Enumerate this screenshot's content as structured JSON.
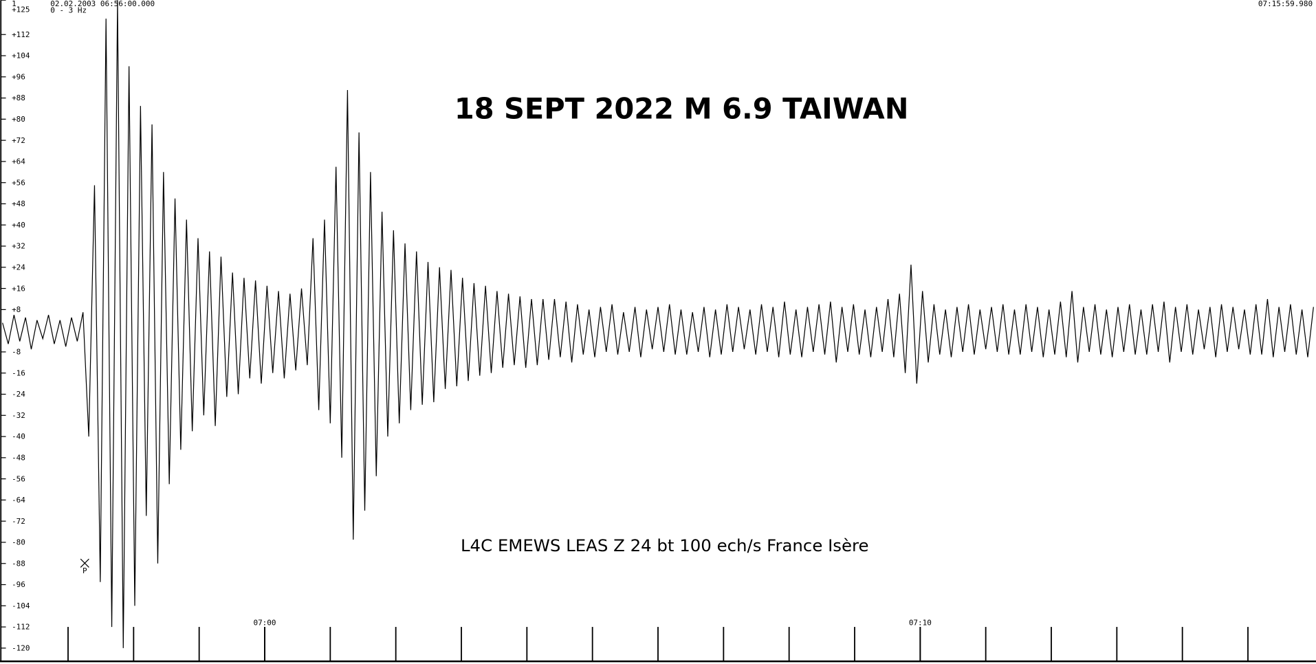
{
  "chart_data": {
    "type": "line",
    "title": "18 SEPT 2022 M 6.9 TAIWAN",
    "subtitle": "L4C EMEWS LEAS Z 24 bt 100 ech/s France Isère",
    "channel": "1",
    "filter": "0 - 3 Hz",
    "start_time": "02.02.2003 06:56:00.000",
    "end_time": "07:15:59.980",
    "annotation": "P",
    "xlim": [
      0,
      20
    ],
    "xticks": [
      {
        "value": 4,
        "label": "07:00"
      },
      {
        "value": 14,
        "label": "07:10"
      }
    ],
    "minor_xticks": [
      1,
      2,
      3,
      4,
      5,
      6,
      7,
      8,
      9,
      10,
      11,
      12,
      13,
      14,
      15,
      16,
      17,
      18,
      19
    ],
    "ylim": [
      -125,
      125
    ],
    "yticks": [
      {
        "value": 125,
        "label": "+125"
      },
      {
        "value": 112,
        "label": "+112"
      },
      {
        "value": 104,
        "label": "+104"
      },
      {
        "value": 96,
        "label": "+96"
      },
      {
        "value": 88,
        "label": "+88"
      },
      {
        "value": 80,
        "label": "+80"
      },
      {
        "value": 72,
        "label": "+72"
      },
      {
        "value": 64,
        "label": "+64"
      },
      {
        "value": 56,
        "label": "+56"
      },
      {
        "value": 48,
        "label": "+48"
      },
      {
        "value": 40,
        "label": "+40"
      },
      {
        "value": 32,
        "label": "+32"
      },
      {
        "value": 24,
        "label": "+24"
      },
      {
        "value": 16,
        "label": "+16"
      },
      {
        "value": 8,
        "label": "+8"
      },
      -8,
      -16,
      -24,
      -32,
      -40,
      -48,
      -56,
      -64,
      -72,
      -80,
      -88,
      -96,
      -104,
      -112,
      -120
    ],
    "series": [
      {
        "color": "#000000",
        "values": [
          3,
          -5,
          6,
          -4,
          5,
          -7,
          4,
          -3,
          6,
          -5,
          4,
          -6,
          5,
          -4,
          7,
          -40,
          55,
          -95,
          118,
          -112,
          125,
          -120,
          100,
          -104,
          85,
          -70,
          78,
          -88,
          60,
          -58,
          50,
          -45,
          42,
          -38,
          35,
          -32,
          30,
          -36,
          28,
          -25,
          22,
          -24,
          20,
          -18,
          19,
          -20,
          17,
          -16,
          15,
          -18,
          14,
          -15,
          16,
          -13,
          35,
          -30,
          42,
          -35,
          62,
          -48,
          91,
          -79,
          75,
          -68,
          60,
          -55,
          45,
          -40,
          38,
          -35,
          33,
          -30,
          30,
          -28,
          26,
          -27,
          24,
          -22,
          23,
          -21,
          20,
          -19,
          18,
          -17,
          17,
          -16,
          15,
          -14,
          14,
          -13,
          13,
          -14,
          12,
          -13,
          12,
          -11,
          12,
          -10,
          11,
          -12,
          10,
          -9,
          8,
          -10,
          9,
          -8,
          10,
          -9,
          7,
          -8,
          9,
          -10,
          8,
          -7,
          9,
          -8,
          10,
          -9,
          8,
          -9,
          7,
          -8,
          9,
          -10,
          8,
          -9,
          10,
          -8,
          9,
          -7,
          8,
          -9,
          10,
          -8,
          9,
          -10,
          11,
          -9,
          8,
          -10,
          9,
          -8,
          10,
          -9,
          11,
          -12,
          9,
          -8,
          10,
          -9,
          8,
          -10,
          9,
          -8,
          12,
          -10,
          14,
          -16,
          25,
          -20,
          15,
          -12,
          10,
          -9,
          8,
          -10,
          9,
          -8,
          10,
          -9,
          8,
          -7,
          9,
          -8,
          10,
          -9,
          8,
          -9,
          10,
          -8,
          9,
          -10,
          8,
          -9,
          11,
          -10,
          15,
          -12,
          9,
          -8,
          10,
          -9,
          8,
          -10,
          9,
          -8,
          10,
          -9,
          8,
          -9,
          10,
          -8,
          11,
          -12,
          9,
          -8,
          10,
          -9,
          8,
          -7,
          9,
          -10,
          10,
          -8,
          9,
          -7,
          8,
          -9,
          10,
          -9,
          12,
          -10,
          9,
          -8,
          10,
          -9,
          8,
          -10,
          9
        ]
      }
    ]
  }
}
